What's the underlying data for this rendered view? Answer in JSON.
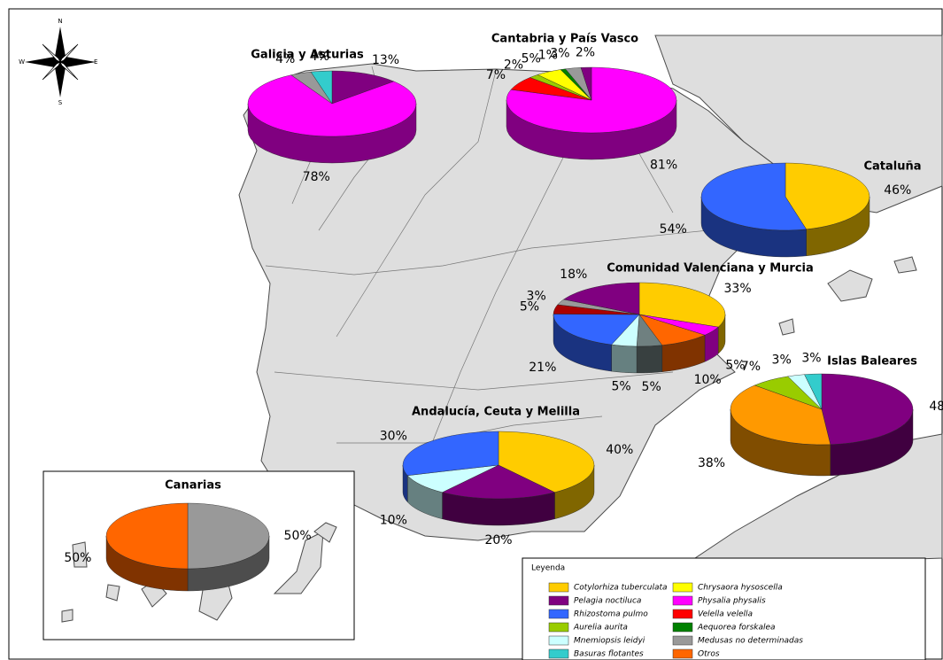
{
  "compass": {
    "n": "N",
    "s": "S",
    "e": "E",
    "w": "W"
  },
  "legend": {
    "title": "Leyenda",
    "items": [
      {
        "name": "Cotylorhiza tuberculata",
        "color": "#ffcc00"
      },
      {
        "name": "Pelagia noctiluca",
        "color": "#800080"
      },
      {
        "name": "Rhizostoma pulmo",
        "color": "#3366ff"
      },
      {
        "name": "Aurelia aurita",
        "color": "#99cc00"
      },
      {
        "name": "Mnemiopsis leidyi",
        "color": "#ccffff"
      },
      {
        "name": "Basuras flotantes",
        "color": "#33cccc"
      },
      {
        "name": "Chrysaora hysoscella",
        "color": "#ffff00"
      },
      {
        "name": "Physalia physalis",
        "color": "#ff00ff"
      },
      {
        "name": "Velella velella",
        "color": "#ff0000"
      },
      {
        "name": "Aequorea forskalea",
        "color": "#008000"
      },
      {
        "name": "Medusas no determinadas",
        "color": "#999999"
      },
      {
        "name": "Otros",
        "color": "#ff6600"
      }
    ]
  },
  "pies": [
    {
      "title": "Galicia y Asturias",
      "slices": [
        {
          "value": 13,
          "label": "13%",
          "color": "#800080"
        },
        {
          "value": 78,
          "label": "78%",
          "color": "#ff00ff"
        },
        {
          "value": 4,
          "label": "4%",
          "color": "#999999"
        },
        {
          "value": 4,
          "label": "4%",
          "color": "#33cccc"
        }
      ]
    },
    {
      "title": "Cantabria y País Vasco",
      "slices": [
        {
          "value": 81,
          "label": "81%",
          "color": "#ff00ff"
        },
        {
          "value": 7,
          "label": "7%",
          "color": "#ff0000"
        },
        {
          "value": 2,
          "label": "2%",
          "color": "#99cc00"
        },
        {
          "value": 5,
          "label": "5%",
          "color": "#ffff00"
        },
        {
          "value": 1,
          "label": "1%",
          "color": "#008000"
        },
        {
          "value": 3,
          "label": "3%",
          "color": "#999999"
        },
        {
          "value": 2,
          "label": "2%",
          "color": "#800080"
        }
      ]
    },
    {
      "title": "Cataluña",
      "slices": [
        {
          "value": 46,
          "label": "46%",
          "color": "#ffcc00"
        },
        {
          "value": 54,
          "label": "54%",
          "color": "#3366ff"
        }
      ]
    },
    {
      "title": "Comunidad Valenciana y Murcia",
      "slices": [
        {
          "value": 33,
          "label": "33%",
          "color": "#ffcc00"
        },
        {
          "value": 5,
          "label": "5%",
          "color": "#ff00ff"
        },
        {
          "value": 10,
          "label": "10%",
          "color": "#ff6600"
        },
        {
          "value": 5,
          "label": "5%",
          "color": "#6f8080"
        },
        {
          "value": 5,
          "label": "5%",
          "color": "#ccffff"
        },
        {
          "value": 21,
          "label": "21%",
          "color": "#3366ff"
        },
        {
          "value": 5,
          "label": "5%",
          "color": "#aa0000"
        },
        {
          "value": 3,
          "label": "3%",
          "color": "#999999"
        },
        {
          "value": 18,
          "label": "18%",
          "color": "#800080"
        }
      ]
    },
    {
      "title": "Islas Baleares",
      "slices": [
        {
          "value": 48,
          "label": "48%",
          "color": "#800080"
        },
        {
          "value": 38,
          "label": "38%",
          "color": "#ff9900"
        },
        {
          "value": 7,
          "label": "7%",
          "color": "#99cc00"
        },
        {
          "value": 3,
          "label": "3%",
          "color": "#ccffff"
        },
        {
          "value": 3,
          "label": "3%",
          "color": "#33cccc"
        }
      ]
    },
    {
      "title": "Andalucía, Ceuta y Melilla",
      "slices": [
        {
          "value": 40,
          "label": "40%",
          "color": "#ffcc00"
        },
        {
          "value": 20,
          "label": "20%",
          "color": "#800080"
        },
        {
          "value": 10,
          "label": "10%",
          "color": "#ccffff"
        },
        {
          "value": 30,
          "label": "30%",
          "color": "#3366ff"
        }
      ]
    },
    {
      "title": "Canarias",
      "slices": [
        {
          "value": 50,
          "label": "50%",
          "color": "#999999"
        },
        {
          "value": 50,
          "label": "50%",
          "color": "#ff6600"
        }
      ]
    }
  ]
}
